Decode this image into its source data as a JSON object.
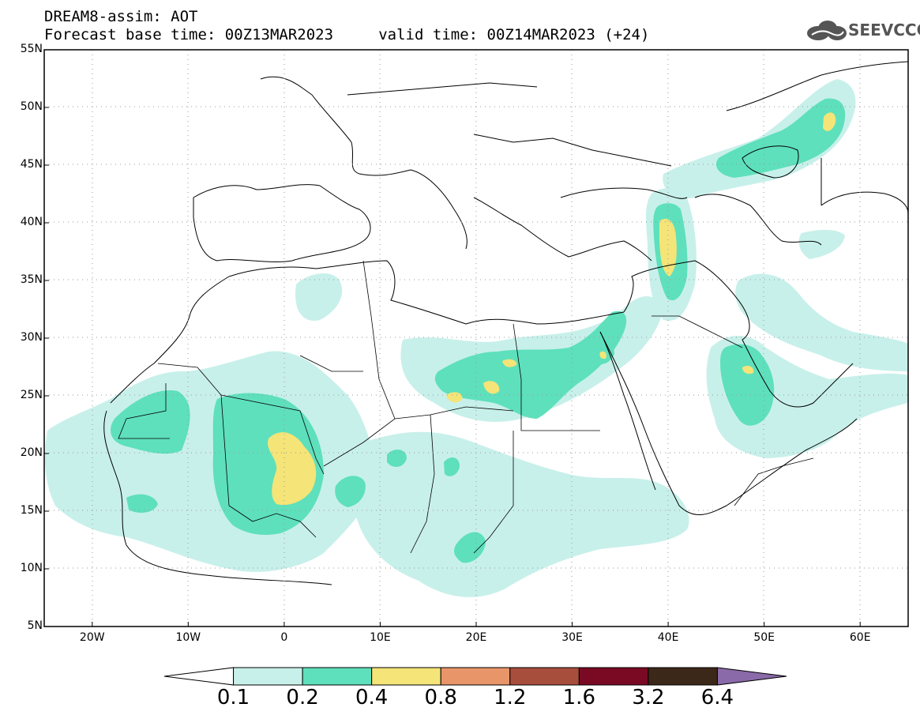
{
  "title": {
    "line1": "DREAM8-assim: AOT",
    "line2": "Forecast base time: 00Z13MAR2023     valid time: 00Z14MAR2023 (+24)"
  },
  "logo": {
    "text": "SEEVCCC",
    "icon": "cloud-icon"
  },
  "map": {
    "lon_range": [
      -25,
      65
    ],
    "lat_range": [
      5,
      55
    ],
    "lat_ticks": [
      {
        "value": 55,
        "label": "55N"
      },
      {
        "value": 50,
        "label": "50N"
      },
      {
        "value": 45,
        "label": "45N"
      },
      {
        "value": 40,
        "label": "40N"
      },
      {
        "value": 35,
        "label": "35N"
      },
      {
        "value": 30,
        "label": "30N"
      },
      {
        "value": 25,
        "label": "25N"
      },
      {
        "value": 20,
        "label": "20N"
      },
      {
        "value": 15,
        "label": "15N"
      },
      {
        "value": 10,
        "label": "10N"
      },
      {
        "value": 5,
        "label": "5N"
      }
    ],
    "lon_ticks": [
      {
        "value": -20,
        "label": "20W"
      },
      {
        "value": -10,
        "label": "10W"
      },
      {
        "value": 0,
        "label": "0"
      },
      {
        "value": 10,
        "label": "10E"
      },
      {
        "value": 20,
        "label": "20E"
      },
      {
        "value": 30,
        "label": "30E"
      },
      {
        "value": 40,
        "label": "40E"
      },
      {
        "value": 50,
        "label": "50E"
      },
      {
        "value": 60,
        "label": "60E"
      }
    ],
    "grid": "dotted"
  },
  "colorbar": {
    "labels": [
      "0.1",
      "0.2",
      "0.4",
      "0.8",
      "1.2",
      "1.6",
      "3.2",
      "6.4"
    ],
    "colors": [
      "#ffffff",
      "#c8f0ea",
      "#5ee0bc",
      "#f5e478",
      "#e8956a",
      "#a84e3c",
      "#7a0a24",
      "#3c2818",
      "#8a6aa8"
    ]
  }
}
